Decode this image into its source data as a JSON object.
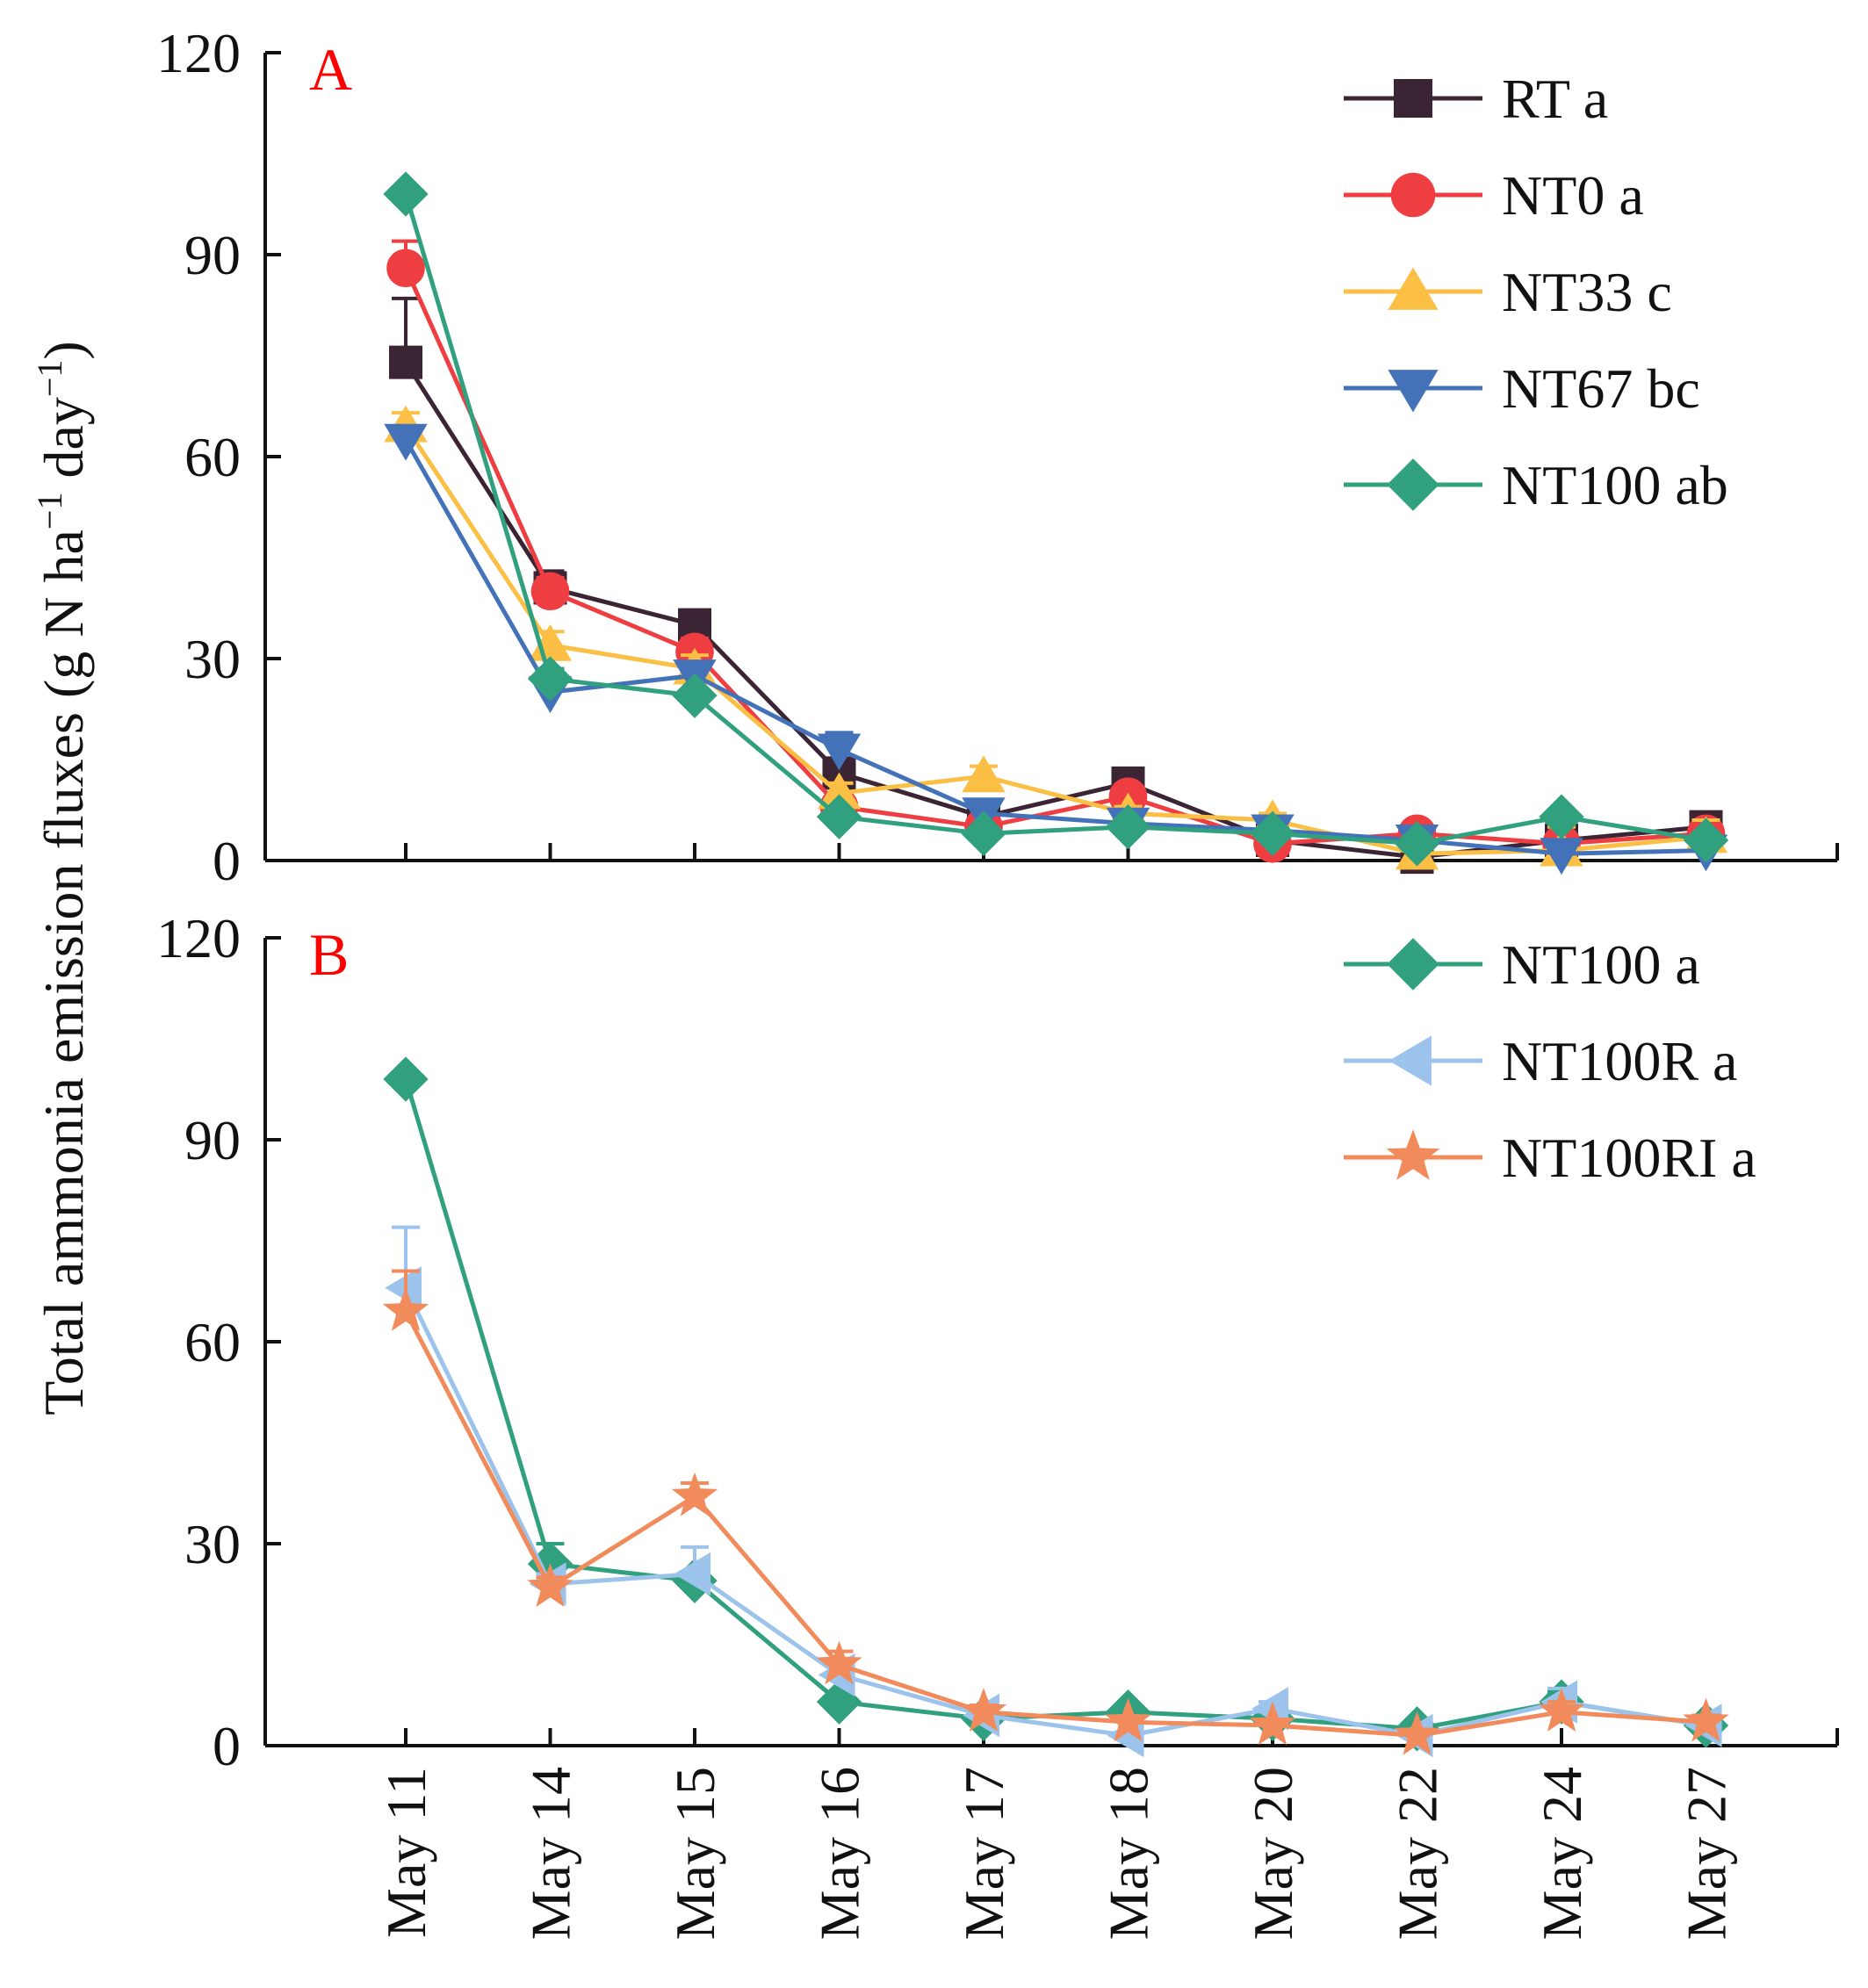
{
  "figure": {
    "ylabel_main": "Total ammonia emission fluxes (g N ha",
    "ylabel_sup1": "−1",
    "ylabel_mid": " day",
    "ylabel_sup2": "−1",
    "ylabel_end": ")"
  },
  "chart_data": [
    {
      "type": "line",
      "panel": "A",
      "panel_color": "#ff0000",
      "categories": [
        "May 11",
        "May 14",
        "May 15",
        "May 16",
        "May 17",
        "May 18",
        "May 20",
        "May 22",
        "May 24",
        "May 27"
      ],
      "ylim": [
        0,
        120
      ],
      "yticks": [
        "0",
        "30",
        "60",
        "90",
        "120"
      ],
      "legend_position": "top-right",
      "series": [
        {
          "name": "RT a",
          "color": "#3b2433",
          "marker": "square",
          "values": [
            74,
            40.5,
            35,
            13,
            6.5,
            11.5,
            3,
            0.5,
            3,
            5
          ],
          "errors": [
            9.5,
            2.5,
            1.5,
            2,
            1,
            1.5,
            1,
            0.5,
            1,
            1
          ]
        },
        {
          "name": "NT0 a",
          "color": "#ee3e42",
          "marker": "circle",
          "values": [
            88,
            40,
            31,
            8,
            5,
            9.5,
            2.5,
            4,
            2.5,
            4
          ],
          "errors": [
            4,
            2,
            2,
            1,
            1,
            1.5,
            0.5,
            0.5,
            0.5,
            1
          ]
        },
        {
          "name": "NT33 c",
          "color": "#fbbf45",
          "marker": "triangle-up",
          "values": [
            64.5,
            32,
            28.5,
            10,
            12.5,
            7,
            6,
            1,
            1.5,
            3.5
          ],
          "errors": [
            2,
            2,
            2,
            1.5,
            1.5,
            1,
            1,
            0.5,
            3.5,
            2.5
          ]
        },
        {
          "name": "NT67 bc",
          "color": "#4472b8",
          "marker": "triangle-down",
          "values": [
            62.5,
            25,
            27.5,
            16.5,
            7,
            5.5,
            4.5,
            3,
            1,
            1.5
          ],
          "errors": [
            2,
            2,
            1,
            2.5,
            1,
            1,
            1,
            0.5,
            0.5,
            0.5
          ]
        },
        {
          "name": "NT100 ab",
          "color": "#30a07e",
          "marker": "diamond",
          "values": [
            99,
            27,
            24.5,
            6.5,
            4,
            5,
            4,
            2.5,
            6.5,
            3
          ],
          "errors": [
            1,
            1.5,
            1,
            1,
            0.5,
            1,
            0.5,
            0.5,
            1,
            0.5
          ]
        }
      ]
    },
    {
      "type": "line",
      "panel": "B",
      "panel_color": "#ff0000",
      "categories": [
        "May 11",
        "May 14",
        "May 15",
        "May 16",
        "May 17",
        "May 18",
        "May 20",
        "May 22",
        "May 24",
        "May 27"
      ],
      "ylim": [
        0,
        120
      ],
      "yticks": [
        "0",
        "30",
        "60",
        "90",
        "120"
      ],
      "legend_position": "top-right",
      "series": [
        {
          "name": "NT100 a",
          "color": "#30a07e",
          "marker": "diamond",
          "values": [
            99,
            27,
            24.5,
            6.5,
            4,
            5,
            4,
            2.5,
            6.5,
            3
          ],
          "errors": [
            1,
            3,
            1,
            1,
            0.5,
            1,
            0.5,
            0.5,
            1.5,
            0.5
          ]
        },
        {
          "name": "NT100R a",
          "color": "#9cc3ec",
          "marker": "triangle-left",
          "values": [
            68,
            24,
            25.5,
            10.5,
            4.5,
            1.5,
            5.5,
            1.5,
            6.5,
            3
          ],
          "errors": [
            9,
            1.5,
            4,
            1.5,
            1,
            0.5,
            1,
            0.5,
            2,
            0.5
          ]
        },
        {
          "name": "NT100RI a",
          "color": "#f28b5b",
          "marker": "star",
          "values": [
            64.5,
            23.5,
            37,
            12,
            5,
            3.5,
            3,
            1.5,
            5,
            3.5
          ],
          "errors": [
            6,
            1.5,
            2,
            2,
            1,
            0.5,
            0.5,
            0.5,
            1.5,
            1
          ]
        }
      ]
    }
  ]
}
